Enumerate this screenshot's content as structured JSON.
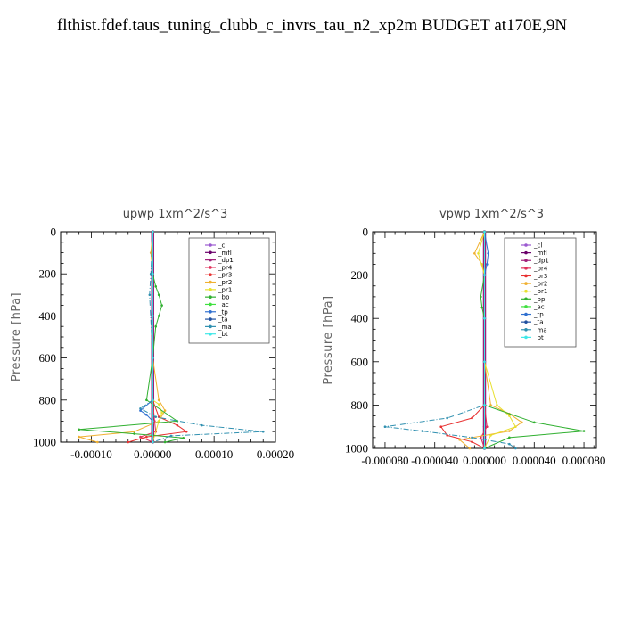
{
  "title": "flthist.fdef.taus_tuning_clubb_c_invrs_tau_n2_xp2m  BUDGET at170E,9N",
  "legend_entries": [
    "_cl",
    "_mfl",
    "_dp1",
    "_pr4",
    "_pr3",
    "_pr2",
    "_pr1",
    "_bp",
    "_ac",
    "_tp",
    "_ta",
    "_ma",
    "_bt"
  ],
  "colors": {
    "_cl": "#9b59d0",
    "_mfl": "#6a006a",
    "_dp1": "#a0207a",
    "_pr4": "#e0305a",
    "_pr3": "#e83030",
    "_pr2": "#f0b030",
    "_pr1": "#e8e030",
    "_bp": "#30b030",
    "_ac": "#40e040",
    "_tp": "#3070d0",
    "_ta": "#2050a0",
    "_ma": "#3090b0",
    "_bt": "#40e8e8"
  },
  "chart_data": [
    {
      "type": "line",
      "title": "upwp   1xm^2/s^3",
      "ylabel": "Pressure [hPa]",
      "xlim": [
        -0.00015,
        0.0002
      ],
      "ylim": [
        1000,
        0
      ],
      "x_ticks": [
        -0.0001,
        0,
        0.0001,
        0.0002
      ],
      "x_tick_labels": [
        "-0.00010",
        "0.00000",
        "0.00010",
        "0.00020"
      ],
      "y_ticks": [
        0,
        200,
        400,
        600,
        800,
        1000
      ],
      "y_tick_labels": [
        "0",
        "200",
        "400",
        "600",
        "800",
        "1000"
      ],
      "legend_position": "top-right",
      "series": [
        {
          "name": "_cl",
          "y": [
            0,
            200,
            400,
            600,
            800,
            900,
            950,
            1000
          ],
          "x": [
            0,
            0,
            0,
            0,
            0,
            0,
            0,
            0
          ]
        },
        {
          "name": "_mfl",
          "y": [
            0,
            200,
            400,
            600,
            800,
            900,
            950,
            1000
          ],
          "x": [
            0,
            0,
            0,
            0,
            0,
            0,
            0,
            0
          ]
        },
        {
          "name": "_dp1",
          "y": [
            0,
            200,
            400,
            600,
            800,
            900,
            950,
            1000
          ],
          "x": [
            0,
            0,
            0,
            0,
            0,
            0,
            0,
            0
          ]
        },
        {
          "name": "_pr4",
          "y": [
            0,
            200,
            400,
            600,
            800,
            900,
            950,
            975,
            1000
          ],
          "x": [
            0,
            0,
            0,
            0,
            0,
            3e-06,
            5e-06,
            -2e-05,
            0
          ]
        },
        {
          "name": "_pr3",
          "y": [
            0,
            200,
            400,
            600,
            800,
            880,
            920,
            950,
            975,
            1000
          ],
          "x": [
            0,
            0,
            0,
            0,
            0,
            1e-05,
            4e-05,
            5.5e-05,
            -1e-05,
            -4e-05
          ]
        },
        {
          "name": "_pr2",
          "y": [
            0,
            100,
            200,
            400,
            600,
            800,
            850,
            900,
            950,
            975,
            1000
          ],
          "x": [
            0,
            -3e-06,
            0,
            0,
            0,
            1e-05,
            2e-05,
            1e-05,
            -3e-05,
            -0.00012,
            -9e-05
          ]
        },
        {
          "name": "_pr1",
          "y": [
            0,
            200,
            400,
            600,
            800,
            820,
            860,
            900,
            1000
          ],
          "x": [
            0,
            0,
            0,
            0,
            0,
            1e-05,
            1.5e-05,
            1e-05,
            0
          ]
        },
        {
          "name": "_bp",
          "y": [
            0,
            200,
            260,
            300,
            350,
            400,
            450,
            600,
            800,
            900,
            940,
            960,
            980,
            1000
          ],
          "x": [
            0,
            0,
            5e-06,
            1e-05,
            1.5e-05,
            1e-05,
            5e-06,
            0,
            -1e-05,
            4e-05,
            -0.00012,
            -3e-05,
            5e-05,
            2e-05
          ]
        },
        {
          "name": "_ac",
          "y": [
            0,
            200,
            400,
            600,
            800,
            900,
            1000
          ],
          "x": [
            0,
            0,
            0,
            0,
            0,
            0,
            0
          ]
        },
        {
          "name": "_tp",
          "y": [
            0,
            200,
            400,
            600,
            800,
            850,
            870,
            900,
            1000
          ],
          "x": [
            0,
            0,
            0,
            0,
            0,
            -2e-05,
            -1e-05,
            0,
            0
          ]
        },
        {
          "name": "_ta",
          "y": [
            0,
            200,
            400,
            600,
            800,
            900,
            1000
          ],
          "x": [
            0,
            0,
            0,
            0,
            0,
            0,
            0
          ]
        },
        {
          "name": "_ma",
          "y": [
            0,
            200,
            300,
            600,
            800,
            840,
            880,
            920,
            950,
            970,
            1000
          ],
          "x": [
            0,
            -3e-06,
            -5e-06,
            0,
            0,
            -2e-05,
            5e-06,
            8e-05,
            0.00018,
            3e-05,
            0
          ]
        },
        {
          "name": "_bt",
          "y": [
            0,
            200,
            400,
            600,
            800,
            900,
            1000
          ],
          "x": [
            0,
            0,
            0,
            0,
            0,
            0,
            0
          ]
        }
      ]
    },
    {
      "type": "line",
      "title": "vpwp   1xm^2/s^3",
      "ylabel": "Pressure [hPa]",
      "xlim": [
        -9e-05,
        9e-05
      ],
      "ylim": [
        1000,
        0
      ],
      "x_ticks": [
        -8e-05,
        -4e-05,
        0,
        4e-05,
        8e-05
      ],
      "x_tick_labels": [
        "-0.000080",
        "-0.000040",
        "0.000000",
        "0.000040",
        "0.000080"
      ],
      "y_ticks": [
        0,
        200,
        400,
        600,
        800,
        1000
      ],
      "y_tick_labels": [
        "0",
        "200",
        "400",
        "600",
        "800",
        "1000"
      ],
      "legend_position": "top-right",
      "series": [
        {
          "name": "_cl",
          "y": [
            0,
            200,
            400,
            600,
            800,
            900,
            1000
          ],
          "x": [
            0,
            0,
            0,
            0,
            0,
            0,
            0
          ]
        },
        {
          "name": "_mfl",
          "y": [
            0,
            200,
            400,
            600,
            800,
            900,
            1000
          ],
          "x": [
            0,
            0,
            0,
            0,
            0,
            0,
            0
          ]
        },
        {
          "name": "_dp1",
          "y": [
            0,
            200,
            400,
            600,
            800,
            900,
            1000
          ],
          "x": [
            0,
            0,
            0,
            0,
            0,
            0,
            0
          ]
        },
        {
          "name": "_pr4",
          "y": [
            0,
            200,
            400,
            600,
            800,
            900,
            950,
            1000
          ],
          "x": [
            0,
            0,
            0,
            0,
            0,
            2e-06,
            -3e-06,
            0
          ]
        },
        {
          "name": "_pr3",
          "y": [
            0,
            200,
            400,
            600,
            800,
            860,
            900,
            940,
            970,
            1000
          ],
          "x": [
            0,
            0,
            0,
            0,
            0,
            -1e-05,
            -3.5e-05,
            -3e-05,
            -1e-05,
            0
          ]
        },
        {
          "name": "_pr2",
          "y": [
            0,
            100,
            150,
            200,
            400,
            600,
            800,
            840,
            880,
            920,
            960,
            1000
          ],
          "x": [
            0,
            -8e-06,
            -2e-06,
            0,
            0,
            0,
            5e-06,
            2e-05,
            3e-05,
            2e-05,
            -2e-05,
            -1.2e-05
          ]
        },
        {
          "name": "_pr1",
          "y": [
            0,
            100,
            200,
            400,
            600,
            800,
            850,
            900,
            940,
            1000
          ],
          "x": [
            0,
            -5e-06,
            0,
            0,
            0,
            1e-05,
            2e-05,
            2.5e-05,
            5e-06,
            0
          ]
        },
        {
          "name": "_bp",
          "y": [
            0,
            200,
            300,
            350,
            400,
            600,
            800,
            880,
            920,
            950,
            1000
          ],
          "x": [
            0,
            0,
            -3e-06,
            -2e-06,
            0,
            0,
            0,
            4e-05,
            8e-05,
            2e-05,
            0
          ]
        },
        {
          "name": "_ac",
          "y": [
            0,
            200,
            400,
            600,
            800,
            1000
          ],
          "x": [
            0,
            0,
            0,
            0,
            0,
            0
          ]
        },
        {
          "name": "_tp",
          "y": [
            0,
            100,
            150,
            200,
            400,
            600,
            800,
            1000
          ],
          "x": [
            0,
            3e-06,
            2e-06,
            0,
            0,
            0,
            0,
            0
          ]
        },
        {
          "name": "_ta",
          "y": [
            0,
            200,
            400,
            600,
            800,
            1000
          ],
          "x": [
            0,
            0,
            0,
            0,
            0,
            0
          ]
        },
        {
          "name": "_ma",
          "y": [
            0,
            200,
            400,
            600,
            800,
            860,
            900,
            920,
            950,
            980,
            1000
          ],
          "x": [
            0,
            0,
            0,
            0,
            0,
            -3e-05,
            -8e-05,
            -5e-05,
            -1e-05,
            2e-05,
            2.5e-05
          ]
        },
        {
          "name": "_bt",
          "y": [
            0,
            200,
            400,
            600,
            800,
            1000
          ],
          "x": [
            0,
            0,
            0,
            0,
            0,
            0
          ]
        }
      ]
    }
  ]
}
